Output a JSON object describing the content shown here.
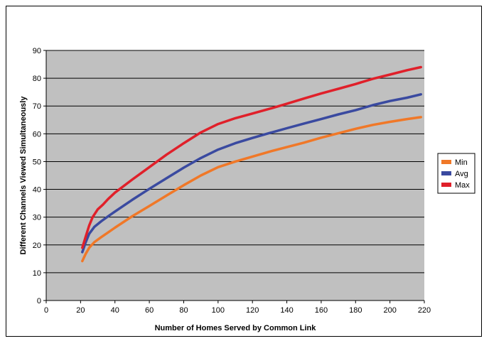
{
  "chart_data": {
    "type": "line",
    "title": "",
    "xlabel": "Number of Homes Served by Common Link",
    "ylabel": "Different Channels Viewed Simultaneously",
    "xlim": [
      0,
      220
    ],
    "ylim": [
      0,
      90
    ],
    "xticks": [
      0,
      20,
      40,
      60,
      80,
      100,
      120,
      140,
      160,
      180,
      200,
      220
    ],
    "yticks": [
      0,
      10,
      20,
      30,
      40,
      50,
      60,
      70,
      80,
      90
    ],
    "grid": "horizontal",
    "legend": "right",
    "plot_background": "#c0c0c0",
    "series": [
      {
        "name": "Min",
        "color": "#f07828",
        "x": [
          21,
          23,
          25,
          28,
          32,
          36,
          40,
          50,
          60,
          70,
          80,
          90,
          100,
          110,
          120,
          130,
          140,
          150,
          160,
          170,
          180,
          190,
          200,
          210,
          218
        ],
        "y": [
          14.2,
          16.8,
          19.0,
          21.0,
          22.8,
          24.5,
          26.2,
          30.3,
          34.0,
          37.8,
          41.5,
          45.0,
          48.0,
          50.0,
          51.8,
          53.6,
          55.2,
          56.8,
          58.6,
          60.2,
          61.8,
          63.2,
          64.3,
          65.3,
          66.0
        ]
      },
      {
        "name": "Avg",
        "color": "#3a4aa0",
        "x": [
          21,
          23,
          25,
          28,
          32,
          36,
          40,
          50,
          60,
          70,
          80,
          90,
          100,
          110,
          120,
          130,
          140,
          150,
          160,
          170,
          180,
          190,
          200,
          210,
          218
        ],
        "y": [
          17.4,
          21.0,
          24.0,
          26.5,
          28.5,
          30.3,
          32.0,
          36.2,
          40.2,
          44.0,
          47.8,
          51.3,
          54.3,
          56.6,
          58.5,
          60.3,
          62.0,
          63.7,
          65.3,
          67.0,
          68.5,
          70.3,
          71.8,
          73.0,
          74.2
        ]
      },
      {
        "name": "Max",
        "color": "#e0202a",
        "x": [
          21,
          23,
          25,
          27,
          30,
          33,
          36,
          40,
          50,
          60,
          70,
          80,
          90,
          100,
          110,
          120,
          130,
          140,
          150,
          160,
          170,
          180,
          190,
          200,
          210,
          218
        ],
        "y": [
          19.0,
          23.0,
          27.0,
          30.0,
          32.8,
          34.5,
          36.5,
          38.8,
          43.5,
          48.0,
          52.5,
          56.6,
          60.5,
          63.5,
          65.6,
          67.3,
          69.0,
          70.8,
          72.7,
          74.5,
          76.2,
          77.9,
          79.8,
          81.3,
          82.9,
          84.0
        ]
      }
    ]
  }
}
